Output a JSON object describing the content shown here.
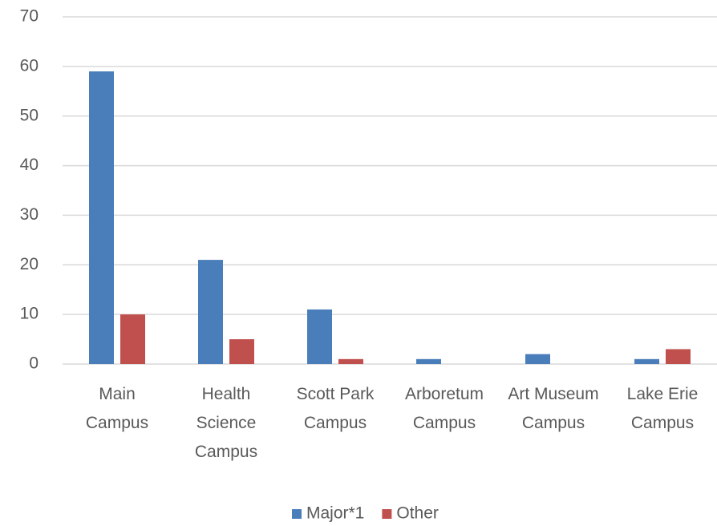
{
  "chart_data": {
    "type": "bar",
    "categories": [
      "Main Campus",
      "Health Science Campus",
      "Scott Park Campus",
      "Arboretum Campus",
      "Art Museum Campus",
      "Lake Erie Campus"
    ],
    "series": [
      {
        "name": "Major*1",
        "color": "#4a7ebb",
        "values": [
          59,
          21,
          11,
          1,
          2,
          1
        ]
      },
      {
        "name": "Other",
        "color": "#c0504d",
        "values": [
          10,
          5,
          1,
          0,
          0,
          3
        ]
      }
    ],
    "ylim": [
      0,
      70
    ],
    "yticks": [
      0,
      10,
      20,
      30,
      40,
      50,
      60,
      70
    ],
    "grid": true,
    "legend": "bottom"
  }
}
